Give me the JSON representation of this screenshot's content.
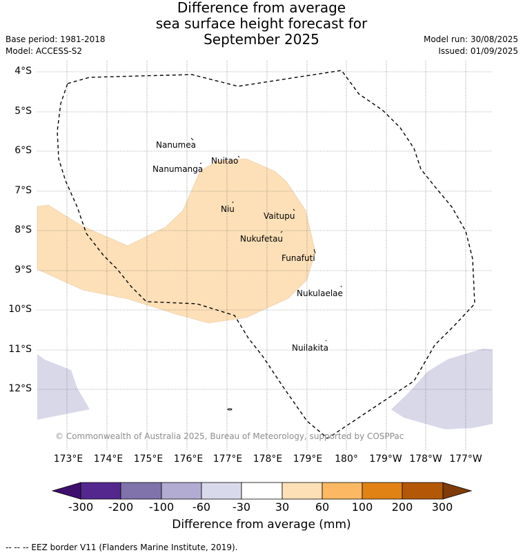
{
  "title": {
    "line1": "Difference from average",
    "line2": "sea surface height forecast for",
    "line3": "September 2025"
  },
  "meta": {
    "base_period": "Base period: 1981-2018",
    "model": "Model: ACCESS-S2",
    "model_run": "Model run: 30/08/2025",
    "issued": "Issued: 01/09/2025"
  },
  "map": {
    "lat_labels": [
      "4°S",
      "5°S",
      "6°S",
      "7°S",
      "8°S",
      "9°S",
      "10°S",
      "11°S",
      "12°S"
    ],
    "lon_labels": [
      "173°E",
      "174°E",
      "175°E",
      "176°E",
      "177°E",
      "178°E",
      "179°E",
      "180°",
      "179°W",
      "178°W",
      "177°W"
    ],
    "islands": [
      "Nanumea",
      "Nuitao",
      "Nanumanga",
      "Niu",
      "Vaitupu",
      "Nukufetau",
      "Funafuti",
      "Nukulaelae",
      "Nuilakita"
    ],
    "copyright": "© Commonwealth of Australia 2025, Bureau of Meteorology, supported by COSPPac",
    "colors": {
      "positive_30_60": "#fde0b8",
      "negative_60_30": "#d8d8e9",
      "eez_line": "#000000",
      "gridline": "#555555"
    }
  },
  "colorbar": {
    "title": "Difference from average (mm)",
    "ticks": [
      "-300",
      "-200",
      "-100",
      "-60",
      "-30",
      "30",
      "60",
      "100",
      "200",
      "300"
    ],
    "colors": [
      "#3f0f6e",
      "#54278f",
      "#8073ac",
      "#b2abd2",
      "#d8daeb",
      "#ffffff",
      "#fee0b6",
      "#fdb863",
      "#e08214",
      "#b35806",
      "#7f3b08"
    ]
  },
  "footnote": "--  --  -- EEZ border V11 (Flanders Marine Institute, 2019)."
}
